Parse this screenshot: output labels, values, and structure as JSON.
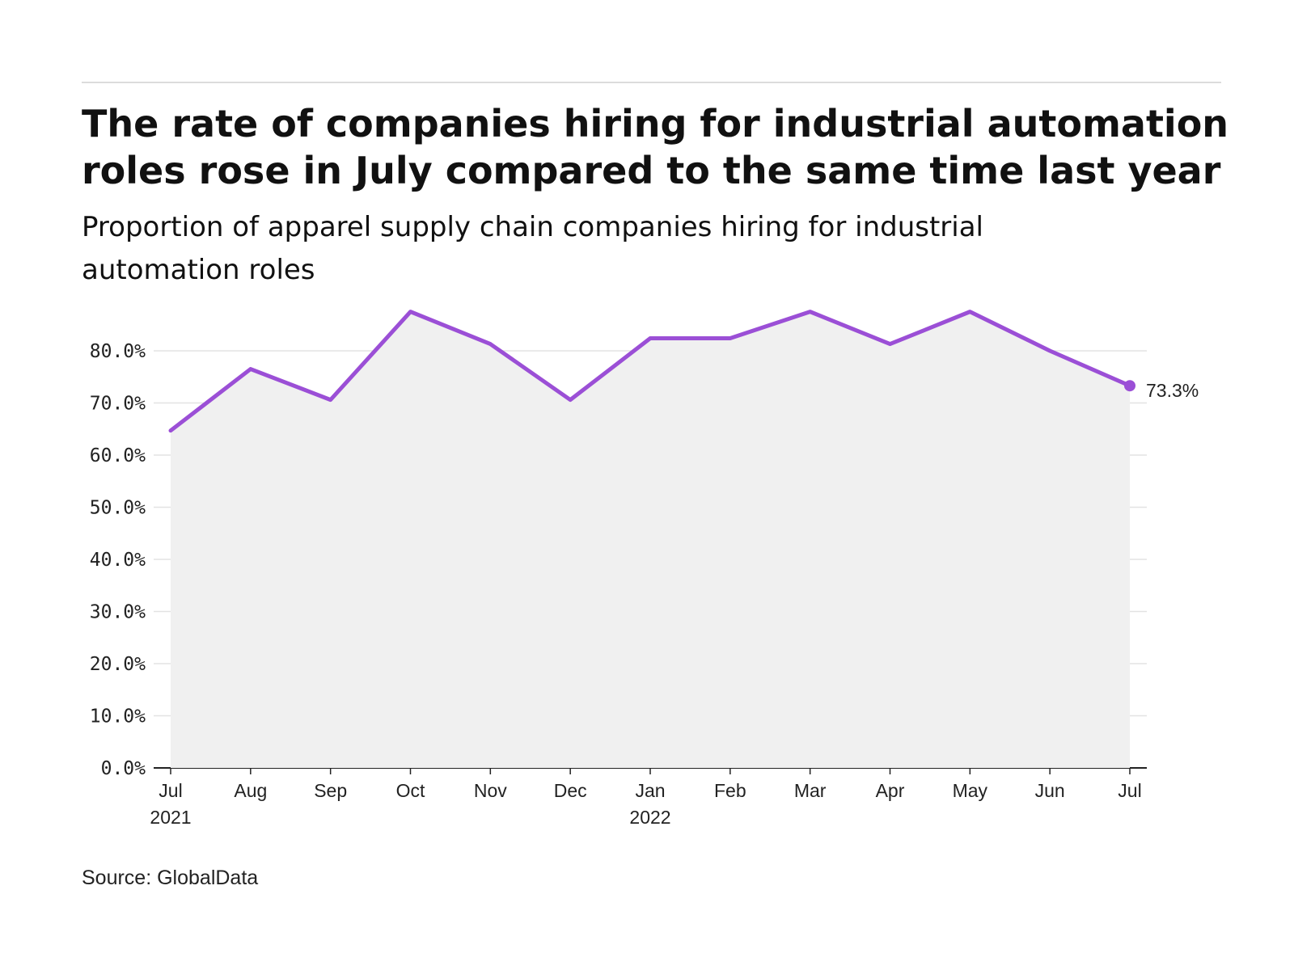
{
  "title": "The rate of companies hiring for industrial automation roles rose in July compared to the same time last year",
  "subtitle": "Proportion of apparel supply chain companies hiring for industrial automation roles",
  "source": "Source: GlobalData",
  "colors": {
    "line": "#9b4fd6",
    "area": "#f0f0f0",
    "grid": "#e3e3e3",
    "axis": "#222222"
  },
  "chart_data": {
    "type": "line",
    "x": [
      "Jul 2021",
      "Aug 2021",
      "Sep 2021",
      "Oct 2021",
      "Nov 2021",
      "Dec 2021",
      "Jan 2022",
      "Feb 2022",
      "Mar 2022",
      "Apr 2022",
      "May 2022",
      "Jun 2022",
      "Jul 2022"
    ],
    "x_tick_labels": [
      {
        "month": "Jul",
        "year": "2021"
      },
      {
        "month": "Aug",
        "year": ""
      },
      {
        "month": "Sep",
        "year": ""
      },
      {
        "month": "Oct",
        "year": ""
      },
      {
        "month": "Nov",
        "year": ""
      },
      {
        "month": "Dec",
        "year": ""
      },
      {
        "month": "Jan",
        "year": "2022"
      },
      {
        "month": "Feb",
        "year": ""
      },
      {
        "month": "Mar",
        "year": ""
      },
      {
        "month": "Apr",
        "year": ""
      },
      {
        "month": "May",
        "year": ""
      },
      {
        "month": "Jun",
        "year": ""
      },
      {
        "month": "Jul",
        "year": ""
      }
    ],
    "series": [
      {
        "values": [
          64.7,
          76.5,
          70.6,
          87.5,
          81.3,
          70.6,
          82.4,
          82.4,
          87.5,
          81.3,
          87.5,
          80.0,
          73.3
        ]
      }
    ],
    "end_label": "73.3%",
    "y_ticks": [
      "0.0%",
      "10.0%",
      "20.0%",
      "30.0%",
      "40.0%",
      "50.0%",
      "60.0%",
      "70.0%",
      "80.0%"
    ],
    "ylim": [
      0,
      80
    ],
    "grid": true,
    "area_fill": true
  }
}
